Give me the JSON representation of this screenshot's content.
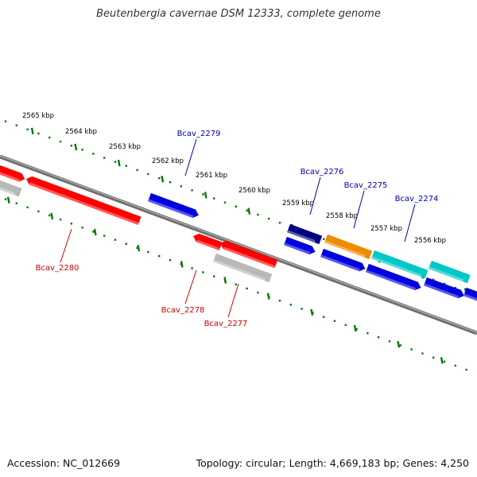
{
  "title": "Beutenbergia cavernae DSM 12333, complete genome",
  "footer": {
    "accession": "Accession: NC_012669",
    "summary": "Topology: circular; Length: 4,669,183 bp; Genes: 4,250"
  },
  "colors": {
    "forward_gene": "#0000e0",
    "forward_gene_dark": "#000080",
    "reverse_gene": "#ff0000",
    "pseudo_gene": "#b8b8b8",
    "rna_orange": "#f08a00",
    "rna_cyan": "#00c8c8",
    "scale_ticks": "#007a00",
    "forward_label": "#0000aa",
    "reverse_label": "#cc0000",
    "backbone": "#707070"
  },
  "scale_labels": [
    "2565 kbp",
    "2564 kbp",
    "2563 kbp",
    "2562 kbp",
    "2561 kbp",
    "2560 kbp",
    "2559 kbp",
    "2558 kbp",
    "2557 kbp",
    "2556 kbp"
  ],
  "gene_labels": {
    "forward": [
      "Bcav_2279",
      "Bcav_2276",
      "Bcav_2275",
      "Bcav_2274"
    ],
    "reverse": [
      "Bcav_2280",
      "Bcav_2278",
      "Bcav_2277"
    ]
  }
}
